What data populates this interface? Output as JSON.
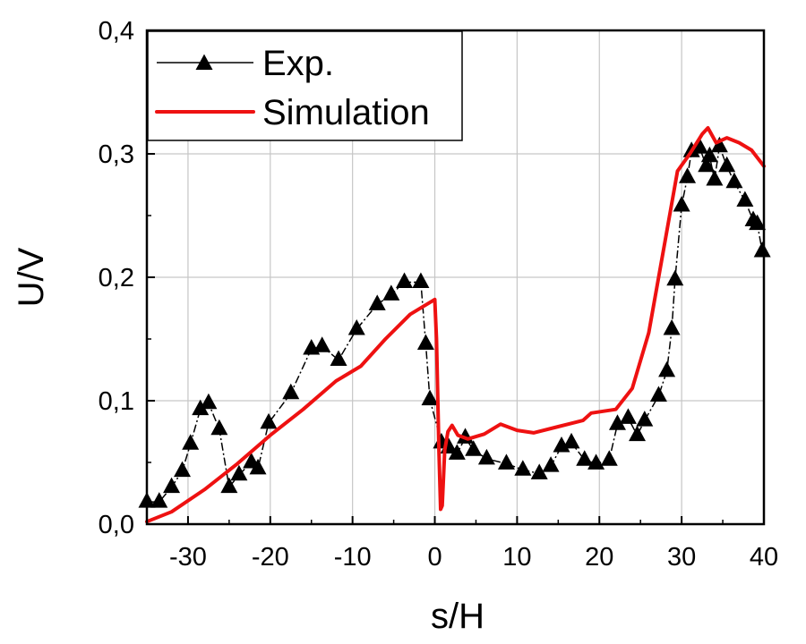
{
  "chart_data": {
    "type": "line",
    "title": "",
    "xlabel": "s/H",
    "ylabel": "U/V",
    "xlim": [
      -35,
      40
    ],
    "ylim": [
      0.0,
      0.4
    ],
    "xticks": [
      -30,
      -20,
      -10,
      0,
      10,
      20,
      30,
      40
    ],
    "xtick_labels": [
      "-30",
      "-20",
      "-10",
      "0",
      "10",
      "20",
      "30",
      "40"
    ],
    "yticks": [
      0.0,
      0.1,
      0.2,
      0.3,
      0.4
    ],
    "ytick_labels": [
      "0,0",
      "0,1",
      "0,2",
      "0,3",
      "0,4"
    ],
    "grid": true,
    "legend_position": "top-left",
    "series": [
      {
        "name": "Exp.",
        "color": "#000000",
        "marker": "triangle",
        "line_style": "dash-dot",
        "points": [
          [
            -35,
            0.018
          ],
          [
            -33.5,
            0.018
          ],
          [
            -32,
            0.03
          ],
          [
            -30.7,
            0.043
          ],
          [
            -29.7,
            0.065
          ],
          [
            -28.5,
            0.093
          ],
          [
            -27.5,
            0.098
          ],
          [
            -26.2,
            0.077
          ],
          [
            -25,
            0.03
          ],
          [
            -23.8,
            0.04
          ],
          [
            -22.3,
            0.05
          ],
          [
            -21.5,
            0.045
          ],
          [
            -20.2,
            0.082
          ],
          [
            -17.5,
            0.106
          ],
          [
            -15,
            0.142
          ],
          [
            -13.7,
            0.144
          ],
          [
            -11.7,
            0.133
          ],
          [
            -9.5,
            0.158
          ],
          [
            -7,
            0.178
          ],
          [
            -5.3,
            0.186
          ],
          [
            -3.7,
            0.196
          ],
          [
            -1.7,
            0.196
          ],
          [
            -1.1,
            0.146
          ],
          [
            -0.6,
            0.101
          ],
          [
            0.8,
            0.066
          ],
          [
            1.7,
            0.062
          ],
          [
            2.7,
            0.057
          ],
          [
            3.7,
            0.07
          ],
          [
            4.7,
            0.06
          ],
          [
            6.3,
            0.053
          ],
          [
            8.7,
            0.049
          ],
          [
            10.7,
            0.044
          ],
          [
            12.7,
            0.041
          ],
          [
            14.1,
            0.047
          ],
          [
            15.4,
            0.063
          ],
          [
            16.6,
            0.066
          ],
          [
            18.2,
            0.052
          ],
          [
            19.6,
            0.049
          ],
          [
            21.2,
            0.052
          ],
          [
            22.2,
            0.081
          ],
          [
            23.5,
            0.086
          ],
          [
            24.6,
            0.072
          ],
          [
            25.5,
            0.084
          ],
          [
            27.2,
            0.104
          ],
          [
            28.2,
            0.124
          ],
          [
            28.8,
            0.158
          ],
          [
            29.2,
            0.198
          ],
          [
            30.0,
            0.258
          ],
          [
            30.7,
            0.281
          ],
          [
            31.2,
            0.302
          ],
          [
            32.2,
            0.305
          ],
          [
            33.0,
            0.29
          ],
          [
            33.4,
            0.298
          ],
          [
            34.0,
            0.279
          ],
          [
            34.6,
            0.306
          ],
          [
            35.5,
            0.29
          ],
          [
            36.4,
            0.277
          ],
          [
            37.7,
            0.262
          ],
          [
            38.7,
            0.246
          ],
          [
            39.2,
            0.243
          ],
          [
            39.8,
            0.221
          ]
        ]
      },
      {
        "name": "Simulation",
        "color": "#ee1111",
        "marker": "none",
        "line_style": "solid",
        "points": [
          [
            -35,
            0.002
          ],
          [
            -32,
            0.01
          ],
          [
            -28,
            0.028
          ],
          [
            -24,
            0.049
          ],
          [
            -20,
            0.072
          ],
          [
            -16,
            0.093
          ],
          [
            -12,
            0.116
          ],
          [
            -9,
            0.128
          ],
          [
            -6,
            0.15
          ],
          [
            -3,
            0.17
          ],
          [
            0,
            0.182
          ],
          [
            0.2,
            0.15
          ],
          [
            0.5,
            0.06
          ],
          [
            0.7,
            0.012
          ],
          [
            0.9,
            0.015
          ],
          [
            1.2,
            0.06
          ],
          [
            1.6,
            0.075
          ],
          [
            2.1,
            0.08
          ],
          [
            2.8,
            0.072
          ],
          [
            4,
            0.069
          ],
          [
            6,
            0.073
          ],
          [
            8,
            0.081
          ],
          [
            10,
            0.076
          ],
          [
            12,
            0.074
          ],
          [
            15,
            0.079
          ],
          [
            18,
            0.084
          ],
          [
            19,
            0.09
          ],
          [
            22,
            0.093
          ],
          [
            24,
            0.11
          ],
          [
            26,
            0.155
          ],
          [
            28,
            0.23
          ],
          [
            29.5,
            0.286
          ],
          [
            31,
            0.3
          ],
          [
            32.5,
            0.316
          ],
          [
            33.2,
            0.321
          ],
          [
            34.2,
            0.309
          ],
          [
            35.5,
            0.313
          ],
          [
            37,
            0.309
          ],
          [
            38.5,
            0.303
          ],
          [
            40,
            0.29
          ]
        ]
      }
    ]
  }
}
